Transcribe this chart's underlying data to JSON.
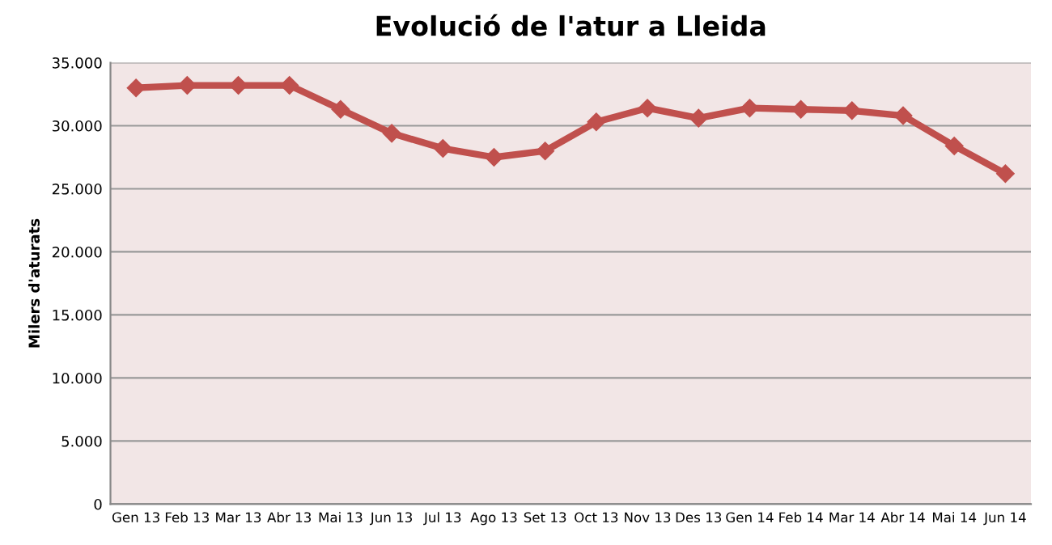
{
  "chart_data": {
    "type": "line",
    "title": "Evolució de l'atur a Lleida",
    "ylabel": "Milers d'aturats",
    "categories": [
      "Gen 13",
      "Feb 13",
      "Mar 13",
      "Abr 13",
      "Mai 13",
      "Jun 13",
      "Jul 13",
      "Ago 13",
      "Set 13",
      "Oct 13",
      "Nov 13",
      "Des 13",
      "Gen 14",
      "Feb 14",
      "Mar 14",
      "Abr 14",
      "Mai 14",
      "Jun 14"
    ],
    "series": [
      {
        "color": "#c0504d",
        "values": [
          33000,
          33200,
          33200,
          33200,
          31300,
          29400,
          28200,
          27500,
          28000,
          30300,
          31400,
          30600,
          31400,
          31300,
          31200,
          30800,
          28400,
          26200
        ]
      }
    ],
    "ylim": [
      0,
      35000
    ],
    "yticks": [
      {
        "value": 0,
        "label": "0"
      },
      {
        "value": 5000,
        "label": "5.000"
      },
      {
        "value": 10000,
        "label": "10.000"
      },
      {
        "value": 15000,
        "label": "15.000"
      },
      {
        "value": 20000,
        "label": "20.000"
      },
      {
        "value": 25000,
        "label": "25.000"
      },
      {
        "value": 30000,
        "label": "30.000"
      },
      {
        "value": 35000,
        "label": "35.000"
      }
    ],
    "grid": "y",
    "marker": "diamond"
  }
}
